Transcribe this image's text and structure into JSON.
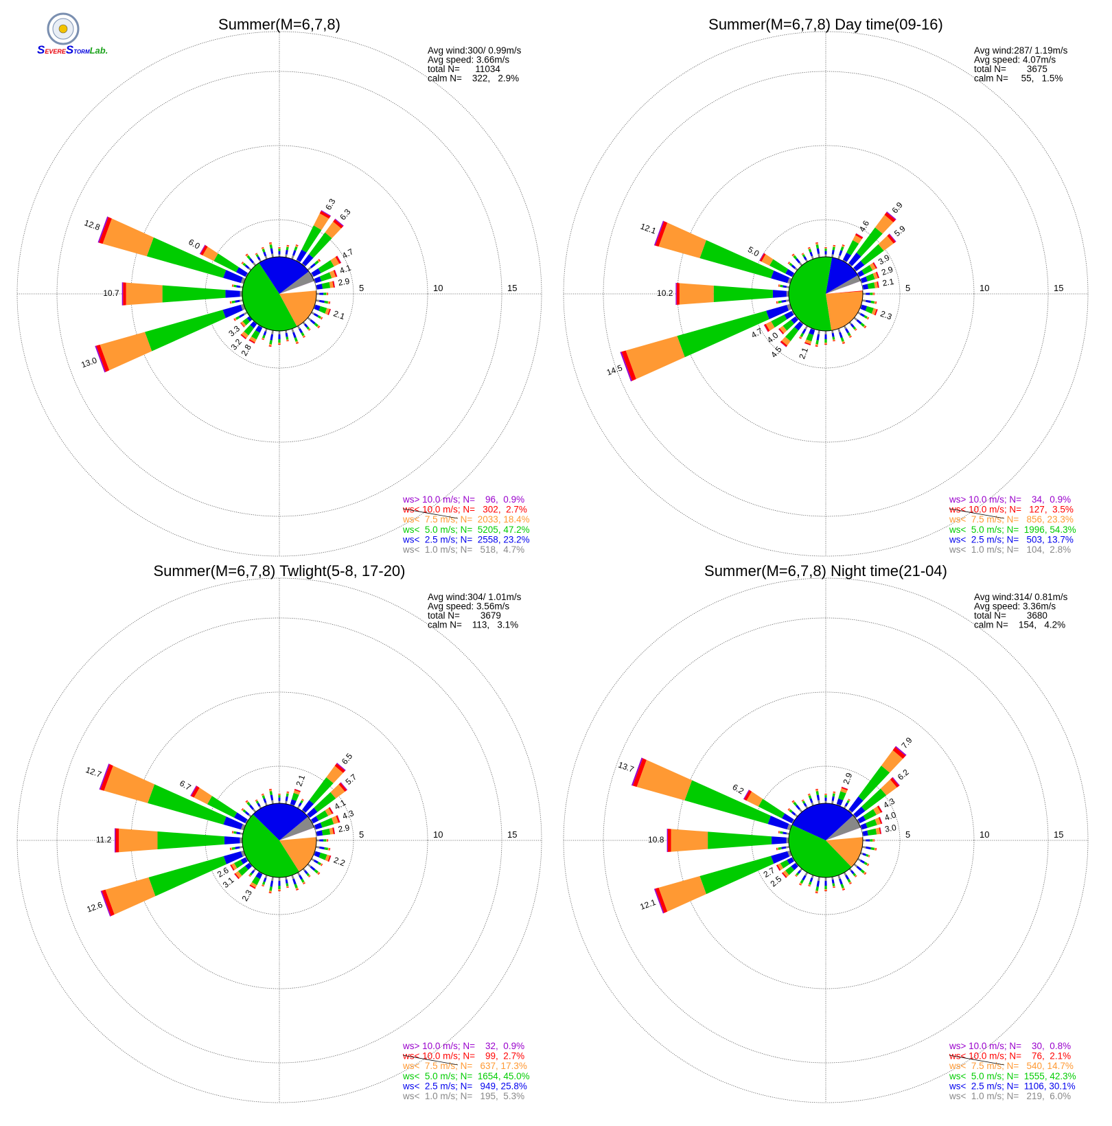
{
  "logo": {
    "text_parts": [
      "S",
      "EVERE",
      "S",
      "TORM",
      "Lab."
    ],
    "colors": {
      "severe": "#e8000b",
      "storm": "#0000dd",
      "lab": "#1aa11a",
      "seal": "#7a8fb0"
    }
  },
  "colors": {
    "ws_gt10": "#9900cc",
    "ws_lt10": "#ff0000",
    "ws_lt7_5": "#ff9933",
    "ws_lt5": "#00cc00",
    "ws_lt2_5": "#0000ee",
    "ws_lt1": "#888888",
    "grid": "#555555"
  },
  "chart_data": [
    {
      "type": "wind-rose",
      "title": "Summer(M=6,7,8)",
      "stats": [
        "Avg wind:300/ 0.99m/s",
        "Avg speed: 3.66m/s",
        "total N=      11034",
        "calm N=    322,   2.9%"
      ],
      "ring_labels": [
        "5",
        "10",
        "15"
      ],
      "rlim": [
        0,
        17
      ],
      "legend": [
        {
          "label": "ws> 10.0 m/s; N=    96,  0.9%",
          "color": "#9900cc"
        },
        {
          "label": "ws< 10.0 m/s; N=   302,  2.7%",
          "color": "#ff0000"
        },
        {
          "label": "ws<  7.5 m/s; N=  2033, 18.4%",
          "color": "#ff9933"
        },
        {
          "label": "ws<  5.0 m/s; N=  5205, 47.2%",
          "color": "#00cc00"
        },
        {
          "label": "ws<  2.5 m/s; N=  2558, 23.2%",
          "color": "#0000ee"
        },
        {
          "label": "ws<  1.0 m/s; N=   518,  4.7%",
          "color": "#888888"
        }
      ],
      "spokes": [
        {
          "dir": 30,
          "total": 6.3,
          "label": "6.3"
        },
        {
          "dir": 40,
          "total": 6.3,
          "label": "6.3"
        },
        {
          "dir": 60,
          "total": 4.7,
          "label": "4.7"
        },
        {
          "dir": 70,
          "total": 4.1,
          "label": "4.1"
        },
        {
          "dir": 80,
          "total": 2.9,
          "label": "2.9"
        },
        {
          "dir": 110,
          "total": 2.1,
          "label": "2.1"
        },
        {
          "dir": 210,
          "total": 2.8,
          "label": "2.8"
        },
        {
          "dir": 220,
          "total": 3.2,
          "label": "3.2"
        },
        {
          "dir": 230,
          "total": 3.3,
          "label": "3.3"
        },
        {
          "dir": 250,
          "total": 13.0,
          "label": "13.0"
        },
        {
          "dir": 270,
          "total": 10.7,
          "label": "10.7"
        },
        {
          "dir": 290,
          "total": 12.8,
          "label": "12.8"
        },
        {
          "dir": 300,
          "total": 6.0,
          "label": "6.0"
        }
      ],
      "pie": [
        {
          "bin": "ws< 1.0",
          "pct": 4.7
        },
        {
          "bin": "ws< 2.5",
          "pct": 23.2
        },
        {
          "bin": "ws< 5.0",
          "pct": 47.2
        },
        {
          "bin": "ws< 7.5",
          "pct": 18.4
        },
        {
          "bin": "ws< 10.0",
          "pct": 2.7
        },
        {
          "bin": "ws> 10.0",
          "pct": 0.9
        }
      ]
    },
    {
      "type": "wind-rose",
      "title": "Summer(M=6,7,8) Day time(09-16)",
      "stats": [
        "Avg wind:287/ 1.19m/s",
        "Avg speed: 4.07m/s",
        "total N=        3675",
        "calm N=     55,   1.5%"
      ],
      "ring_labels": [
        "5",
        "10",
        "15"
      ],
      "rlim": [
        0,
        17
      ],
      "legend": [
        {
          "label": "ws> 10.0 m/s; N=    34,  0.9%",
          "color": "#9900cc"
        },
        {
          "label": "ws< 10.0 m/s; N=   127,  3.5%",
          "color": "#ff0000"
        },
        {
          "label": "ws<  7.5 m/s; N=   856, 23.3%",
          "color": "#ff9933"
        },
        {
          "label": "ws<  5.0 m/s; N=  1996, 54.3%",
          "color": "#00cc00"
        },
        {
          "label": "ws<  2.5 m/s; N=   503, 13.7%",
          "color": "#0000ee"
        },
        {
          "label": "ws<  1.0 m/s; N=   104,  2.8%",
          "color": "#888888"
        }
      ],
      "spokes": [
        {
          "dir": 30,
          "total": 4.6,
          "label": "4.6"
        },
        {
          "dir": 40,
          "total": 6.9,
          "label": "6.9"
        },
        {
          "dir": 50,
          "total": 5.9,
          "label": "5.9"
        },
        {
          "dir": 60,
          "total": 3.9,
          "label": "3.9"
        },
        {
          "dir": 70,
          "total": 2.9,
          "label": "2.9"
        },
        {
          "dir": 80,
          "total": 2.1,
          "label": "2.1"
        },
        {
          "dir": 110,
          "total": 2.3,
          "label": "2.3"
        },
        {
          "dir": 200,
          "total": 2.1,
          "label": "2.1"
        },
        {
          "dir": 220,
          "total": 4.5,
          "label": "4.5"
        },
        {
          "dir": 230,
          "total": 4.0,
          "label": "4.0"
        },
        {
          "dir": 240,
          "total": 4.7,
          "label": "4.7"
        },
        {
          "dir": 250,
          "total": 14.5,
          "label": "14.5"
        },
        {
          "dir": 270,
          "total": 10.2,
          "label": "10.2"
        },
        {
          "dir": 290,
          "total": 12.1,
          "label": "12.1"
        },
        {
          "dir": 300,
          "total": 5.0,
          "label": "5.0"
        }
      ],
      "pie": [
        {
          "bin": "ws< 1.0",
          "pct": 2.8
        },
        {
          "bin": "ws< 2.5",
          "pct": 13.7
        },
        {
          "bin": "ws< 5.0",
          "pct": 54.3
        },
        {
          "bin": "ws< 7.5",
          "pct": 23.3
        },
        {
          "bin": "ws< 10.0",
          "pct": 3.5
        },
        {
          "bin": "ws> 10.0",
          "pct": 0.9
        }
      ]
    },
    {
      "type": "wind-rose",
      "title": "Summer(M=6,7,8) Twlight(5-8, 17-20)",
      "stats": [
        "Avg wind:304/ 1.01m/s",
        "Avg speed: 3.56m/s",
        "total N=        3679",
        "calm N=    113,   3.1%"
      ],
      "ring_labels": [
        "5",
        "10",
        "15"
      ],
      "rlim": [
        0,
        17
      ],
      "legend": [
        {
          "label": "ws> 10.0 m/s; N=    32,  0.9%",
          "color": "#9900cc"
        },
        {
          "label": "ws< 10.0 m/s; N=    99,  2.7%",
          "color": "#ff0000"
        },
        {
          "label": "ws<  7.5 m/s; N=   637, 17.3%",
          "color": "#ff9933"
        },
        {
          "label": "ws<  5.0 m/s; N=  1654, 45.0%",
          "color": "#00cc00"
        },
        {
          "label": "ws<  2.5 m/s; N=   949, 25.8%",
          "color": "#0000ee"
        },
        {
          "label": "ws<  1.0 m/s; N=   195,  5.3%",
          "color": "#888888"
        }
      ],
      "spokes": [
        {
          "dir": 20,
          "total": 2.1,
          "label": "2.1"
        },
        {
          "dir": 40,
          "total": 6.5,
          "label": "6.5"
        },
        {
          "dir": 50,
          "total": 5.7,
          "label": "5.7"
        },
        {
          "dir": 60,
          "total": 4.1,
          "label": "4.1"
        },
        {
          "dir": 70,
          "total": 4.3,
          "label": "4.3"
        },
        {
          "dir": 80,
          "total": 2.9,
          "label": "2.9"
        },
        {
          "dir": 110,
          "total": 2.2,
          "label": "2.2"
        },
        {
          "dir": 210,
          "total": 2.3,
          "label": "2.3"
        },
        {
          "dir": 230,
          "total": 3.1,
          "label": "3.1"
        },
        {
          "dir": 240,
          "total": 2.6,
          "label": "2.6"
        },
        {
          "dir": 250,
          "total": 12.6,
          "label": "12.6"
        },
        {
          "dir": 270,
          "total": 11.2,
          "label": "11.2"
        },
        {
          "dir": 290,
          "total": 12.7,
          "label": "12.7"
        },
        {
          "dir": 300,
          "total": 6.7,
          "label": "6.7"
        }
      ],
      "pie": [
        {
          "bin": "ws< 1.0",
          "pct": 5.3
        },
        {
          "bin": "ws< 2.5",
          "pct": 25.8
        },
        {
          "bin": "ws< 5.0",
          "pct": 45.0
        },
        {
          "bin": "ws< 7.5",
          "pct": 17.3
        },
        {
          "bin": "ws< 10.0",
          "pct": 2.7
        },
        {
          "bin": "ws> 10.0",
          "pct": 0.9
        }
      ]
    },
    {
      "type": "wind-rose",
      "title": "Summer(M=6,7,8) Night time(21-04)",
      "stats": [
        "Avg wind:314/ 0.81m/s",
        "Avg speed: 3.36m/s",
        "total N=        3680",
        "calm N=    154,   4.2%"
      ],
      "ring_labels": [
        "5",
        "10",
        "15"
      ],
      "rlim": [
        0,
        17
      ],
      "legend": [
        {
          "label": "ws> 10.0 m/s; N=    30,  0.8%",
          "color": "#9900cc"
        },
        {
          "label": "ws< 10.0 m/s; N=    76,  2.1%",
          "color": "#ff0000"
        },
        {
          "label": "ws<  7.5 m/s; N=   540, 14.7%",
          "color": "#ff9933"
        },
        {
          "label": "ws<  5.0 m/s; N=  1555, 42.3%",
          "color": "#00cc00"
        },
        {
          "label": "ws<  2.5 m/s; N=  1106, 30.1%",
          "color": "#0000ee"
        },
        {
          "label": "ws<  1.0 m/s; N=   219,  6.0%",
          "color": "#888888"
        }
      ],
      "spokes": [
        {
          "dir": 20,
          "total": 2.9,
          "label": "2.9"
        },
        {
          "dir": 40,
          "total": 7.9,
          "label": "7.9"
        },
        {
          "dir": 50,
          "total": 6.2,
          "label": "6.2"
        },
        {
          "dir": 60,
          "total": 4.3,
          "label": "4.3"
        },
        {
          "dir": 70,
          "total": 4.0,
          "label": "4.0"
        },
        {
          "dir": 80,
          "total": 3.0,
          "label": "3.0"
        },
        {
          "dir": 230,
          "total": 2.5,
          "label": "2.5"
        },
        {
          "dir": 240,
          "total": 2.7,
          "label": "2.7"
        },
        {
          "dir": 250,
          "total": 12.1,
          "label": "12.1"
        },
        {
          "dir": 270,
          "total": 10.8,
          "label": "10.8"
        },
        {
          "dir": 290,
          "total": 13.7,
          "label": "13.7"
        },
        {
          "dir": 300,
          "total": 6.2,
          "label": "6.2"
        }
      ],
      "pie": [
        {
          "bin": "ws< 1.0",
          "pct": 6.0
        },
        {
          "bin": "ws< 2.5",
          "pct": 30.1
        },
        {
          "bin": "ws< 5.0",
          "pct": 42.3
        },
        {
          "bin": "ws< 7.5",
          "pct": 14.7
        },
        {
          "bin": "ws< 10.0",
          "pct": 2.1
        },
        {
          "bin": "ws> 10.0",
          "pct": 0.8
        }
      ]
    }
  ]
}
